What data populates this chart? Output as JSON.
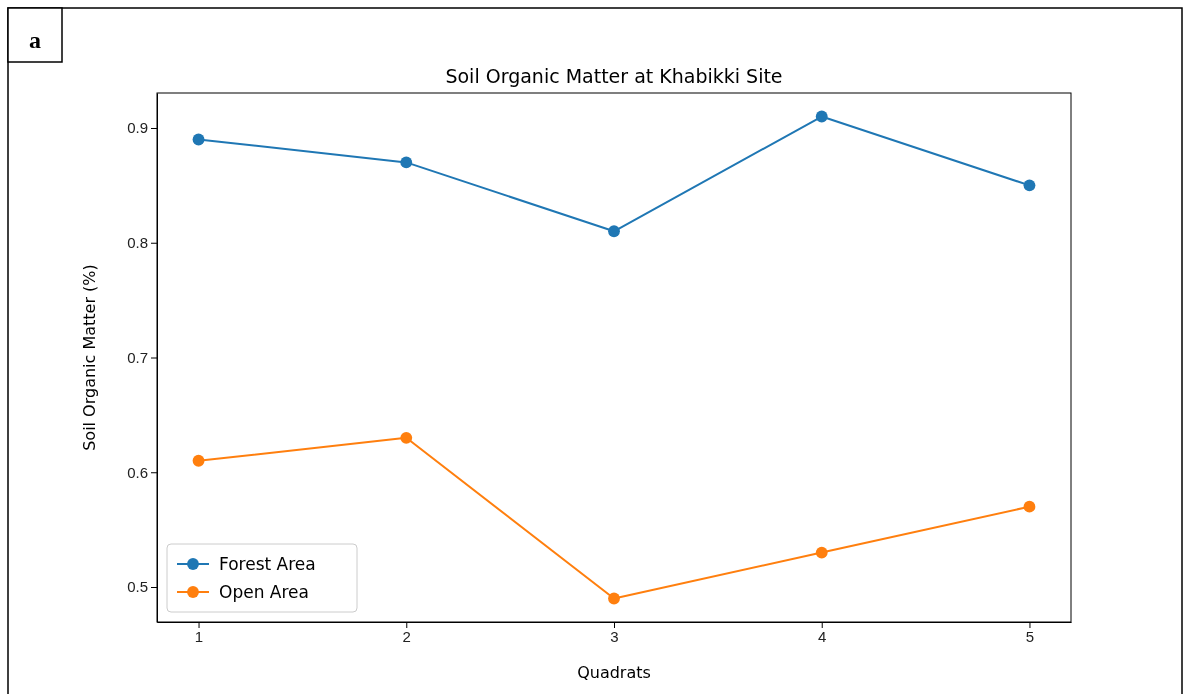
{
  "chart_data": {
    "type": "line",
    "title": "Soil Organic Matter at Khabikki Site",
    "xlabel": "Quadrats",
    "ylabel": "Soil Organic Matter (%)",
    "x": [
      1,
      2,
      3,
      4,
      5
    ],
    "series": [
      {
        "name": "Forest Area",
        "color": "#1f77b4",
        "values": [
          0.89,
          0.87,
          0.81,
          0.91,
          0.85
        ]
      },
      {
        "name": "Open Area",
        "color": "#ff7f0e",
        "values": [
          0.61,
          0.63,
          0.49,
          0.53,
          0.57
        ]
      }
    ],
    "xlim": [
      0.8,
      5.2
    ],
    "xticks": [
      1,
      2,
      3,
      4,
      5
    ],
    "ylim": [
      0.4695,
      0.9305
    ],
    "yticks": [
      0.5,
      0.6,
      0.7,
      0.8,
      0.9
    ],
    "grid": false,
    "legend": "bottom left",
    "marker": "circle",
    "line_style": "solid",
    "annotations": [
      "a"
    ]
  }
}
